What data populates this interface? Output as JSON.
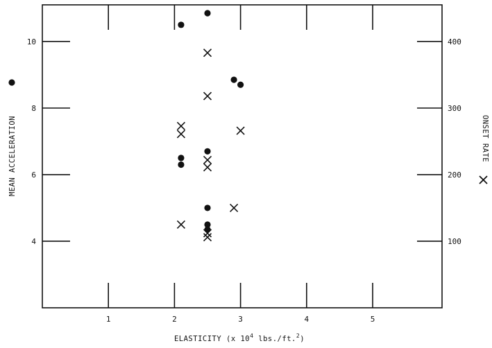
{
  "chart_data": {
    "type": "scatter",
    "xlabel_main": "ELASTICITY (x 10",
    "xlabel_exp": "4",
    "xlabel_unit": " lbs./ft.",
    "xlabel_exp2": "2",
    "xlabel_close": ")",
    "ylabel_left": "MEAN ACCELERATION",
    "ylabel_right": "ONSET RATE",
    "xlim": [
      0,
      6.05
    ],
    "ylim_left": [
      2,
      11.1
    ],
    "ylim_right": [
      0,
      455
    ],
    "x_ticks": [
      1,
      2,
      3,
      4,
      5
    ],
    "x_tick_labels": [
      "1",
      "2",
      "3",
      "4",
      "5"
    ],
    "y_left_ticks": [
      4,
      6,
      8,
      10
    ],
    "y_left_tick_labels": [
      "4",
      "6",
      "8",
      "10"
    ],
    "y_right_ticks": [
      100,
      200,
      300,
      400
    ],
    "y_right_tick_labels": [
      "100",
      "200",
      "300",
      "400"
    ],
    "series": [
      {
        "marker": "dot",
        "axis": "left",
        "points": [
          {
            "x": 2.1,
            "y": 10.5
          },
          {
            "x": 2.5,
            "y": 10.85
          },
          {
            "x": 2.9,
            "y": 8.85
          },
          {
            "x": 3.0,
            "y": 8.7
          },
          {
            "x": 2.5,
            "y": 6.7
          },
          {
            "x": 2.1,
            "y": 6.5
          },
          {
            "x": 2.1,
            "y": 6.3
          },
          {
            "x": 2.5,
            "y": 5.0
          },
          {
            "x": 2.5,
            "y": 4.5
          },
          {
            "x": 2.5,
            "y": 4.35
          }
        ]
      },
      {
        "marker": "cross",
        "axis": "right",
        "points": [
          {
            "x": 2.5,
            "y": 383
          },
          {
            "x": 2.5,
            "y": 318
          },
          {
            "x": 2.1,
            "y": 273
          },
          {
            "x": 2.1,
            "y": 261
          },
          {
            "x": 3.0,
            "y": 266
          },
          {
            "x": 2.5,
            "y": 222
          },
          {
            "x": 2.5,
            "y": 211
          },
          {
            "x": 2.9,
            "y": 150
          },
          {
            "x": 2.1,
            "y": 125
          },
          {
            "x": 2.5,
            "y": 112
          },
          {
            "x": 2.5,
            "y": 106
          }
        ]
      }
    ],
    "grid": false
  }
}
